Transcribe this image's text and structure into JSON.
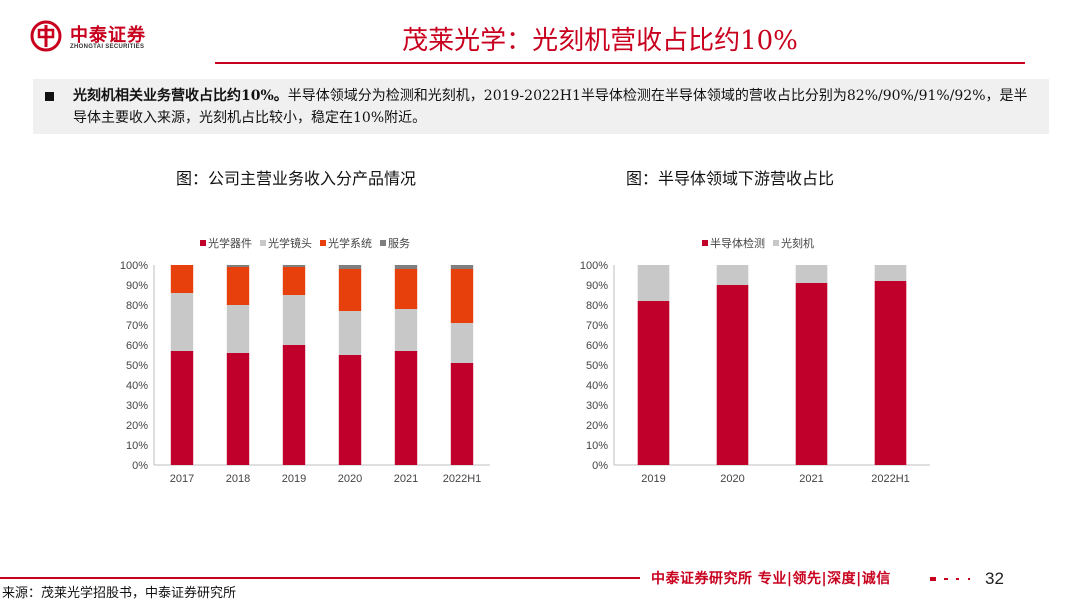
{
  "brand": {
    "name_cn": "中泰证券",
    "name_en": "ZHONGTAI SECURITIES",
    "color": "#c8001e"
  },
  "page_title": "茂莱光学：光刻机营收占比约10%",
  "summary": {
    "lead": "光刻机相关业务营收占比约10%。",
    "text": "半导体领域分为检测和光刻机，2019-2022H1半导体检测在半导体领域的营收占比分别为82%/90%/91%/92%，是半导体主要收入来源，光刻机占比较小，稳定在10%附近。"
  },
  "chart_data": [
    {
      "type": "bar",
      "stacked": true,
      "title": "图：公司主营业务收入分产品情况",
      "categories": [
        "2017",
        "2018",
        "2019",
        "2020",
        "2021",
        "2022H1"
      ],
      "ylim": [
        0,
        100
      ],
      "yticks": [
        "0%",
        "10%",
        "20%",
        "30%",
        "40%",
        "50%",
        "60%",
        "70%",
        "80%",
        "90%",
        "100%"
      ],
      "legend_position": "top",
      "series": [
        {
          "name": "光学器件",
          "color": "#c0002a",
          "values": [
            57,
            56,
            60,
            55,
            57,
            51
          ]
        },
        {
          "name": "光学镜头",
          "color": "#c8c8c8",
          "values": [
            29,
            24,
            25,
            22,
            21,
            20
          ]
        },
        {
          "name": "光学系统",
          "color": "#e8400c",
          "values": [
            14,
            19,
            14,
            21,
            20,
            27
          ]
        },
        {
          "name": "服务",
          "color": "#7f7f7f",
          "values": [
            0,
            1,
            1,
            2,
            2,
            2
          ]
        }
      ]
    },
    {
      "type": "bar",
      "stacked": true,
      "title": "图：半导体领域下游营收占比",
      "categories": [
        "2019",
        "2020",
        "2021",
        "2022H1"
      ],
      "ylim": [
        0,
        100
      ],
      "yticks": [
        "0%",
        "10%",
        "20%",
        "30%",
        "40%",
        "50%",
        "60%",
        "70%",
        "80%",
        "90%",
        "100%"
      ],
      "legend_position": "top",
      "series": [
        {
          "name": "半导体检测",
          "color": "#c0002a",
          "values": [
            82,
            90,
            91,
            92
          ]
        },
        {
          "name": "光刻机",
          "color": "#c8c8c8",
          "values": [
            18,
            10,
            9,
            8
          ]
        }
      ]
    }
  ],
  "footer": {
    "source": "来源：茂莱光学招股书，中泰证券研究所",
    "tagline": "中泰证券研究所 专业|领先|深度|诚信",
    "page": "32"
  }
}
